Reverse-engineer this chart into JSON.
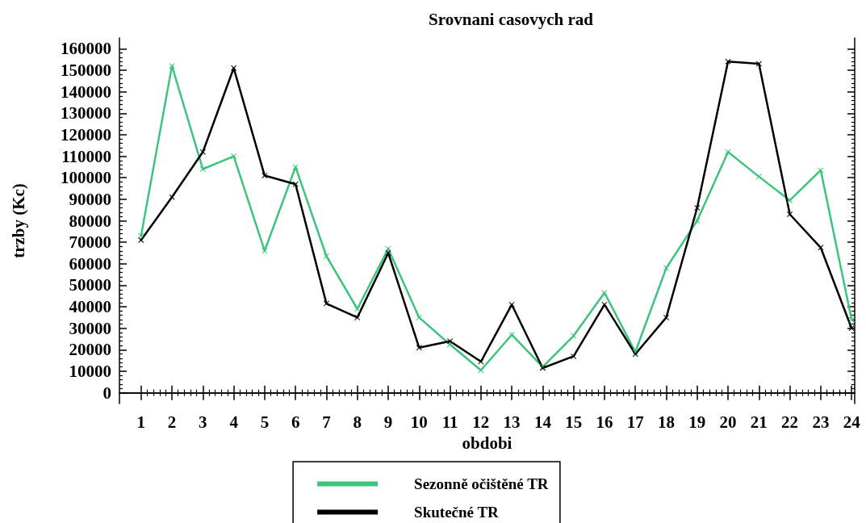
{
  "chart_data": {
    "type": "line",
    "title": "Srovnani casovych rad",
    "xlabel": "obdobi",
    "ylabel": "trzby (Kc)",
    "x": [
      1,
      2,
      3,
      4,
      5,
      6,
      7,
      8,
      9,
      10,
      11,
      12,
      13,
      14,
      15,
      16,
      17,
      18,
      19,
      20,
      21,
      22,
      23,
      24
    ],
    "series": [
      {
        "name": "Sezonně očištěné TR",
        "color": "#3cc47c",
        "values": [
          73000,
          152000,
          104000,
          110000,
          66000,
          105000,
          63500,
          39000,
          67000,
          35000,
          22500,
          10500,
          27000,
          12000,
          26500,
          46500,
          19000,
          58000,
          80000,
          112000,
          100500,
          89500,
          103500,
          34000
        ]
      },
      {
        "name": "Skutečné TR",
        "color": "#000000",
        "values": [
          71000,
          91000,
          112000,
          151000,
          101000,
          97000,
          41500,
          35000,
          65000,
          21000,
          24000,
          14500,
          41000,
          11500,
          17000,
          41000,
          18000,
          35000,
          86000,
          154000,
          153000,
          83000,
          67500,
          30000
        ]
      }
    ],
    "xlim": [
      0.3,
      24.1
    ],
    "xticks": [
      1,
      2,
      3,
      4,
      5,
      6,
      7,
      8,
      9,
      10,
      11,
      12,
      13,
      14,
      15,
      16,
      17,
      18,
      19,
      20,
      21,
      22,
      23,
      24
    ],
    "ylim": [
      -5000,
      165000
    ],
    "yticks": [
      0,
      10000,
      20000,
      30000,
      40000,
      50000,
      60000,
      70000,
      80000,
      90000,
      100000,
      110000,
      120000,
      130000,
      140000,
      150000,
      160000
    ],
    "grid": false,
    "legend": "bottom",
    "marker": "cross",
    "line_style": "solid"
  }
}
